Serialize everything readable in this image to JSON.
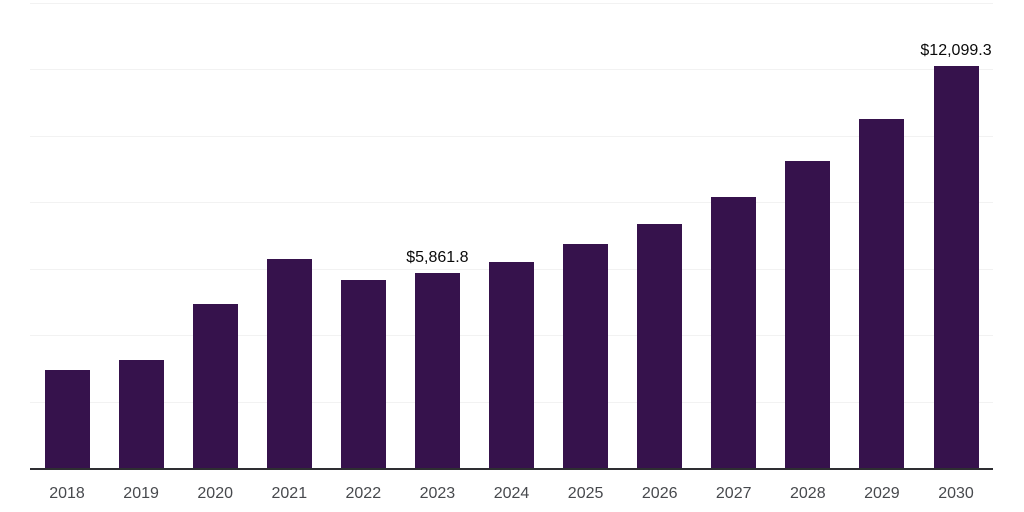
{
  "chart": {
    "background": "#ffffff",
    "bar_color": "#36124c",
    "grid_color": "#f2f2f2",
    "axis_color": "#2e2e32",
    "tick_color": "#47494d",
    "value_label_color": "#0a0a0a"
  },
  "chart_data": {
    "type": "bar",
    "title": "",
    "xlabel": "",
    "ylabel": "",
    "categories": [
      "2018",
      "2019",
      "2020",
      "2021",
      "2022",
      "2023",
      "2024",
      "2025",
      "2026",
      "2027",
      "2028",
      "2029",
      "2030"
    ],
    "values": [
      2960,
      3260,
      4940,
      6290,
      5660,
      5861.8,
      6190,
      6740,
      7350,
      8160,
      9230,
      10510,
      12099.3
    ],
    "data_labels": {
      "2023": "$5,861.8",
      "2030": "$12,099.3"
    },
    "ylim": [
      0,
      14000
    ],
    "gridline_interval": 2000,
    "grid": "horizontal",
    "legend": "none",
    "y_axis_tick_labels": "none"
  }
}
